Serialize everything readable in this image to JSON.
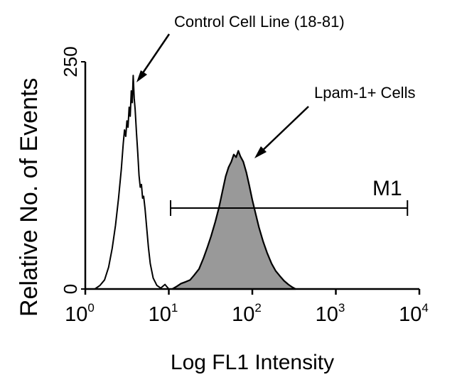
{
  "chart_data": {
    "type": "area",
    "xlabel": "Log FL1 Intensity",
    "ylabel": "Relative No. of Events",
    "x_scale": "log",
    "xlim": [
      1,
      10000
    ],
    "ylim": [
      0,
      250
    ],
    "x_ticks": [
      {
        "base": "10",
        "exp": "0",
        "value": 1
      },
      {
        "base": "10",
        "exp": "1",
        "value": 10
      },
      {
        "base": "10",
        "exp": "2",
        "value": 100
      },
      {
        "base": "10",
        "exp": "3",
        "value": 1000
      },
      {
        "base": "10",
        "exp": "4",
        "value": 10000
      }
    ],
    "y_ticks": [
      {
        "label": "0",
        "value": 0
      },
      {
        "label": "250",
        "value": 250
      }
    ],
    "series": [
      {
        "style": "outline",
        "color": "#000000",
        "points": [
          [
            1.3,
            0
          ],
          [
            1.5,
            4
          ],
          [
            1.7,
            10
          ],
          [
            1.9,
            24
          ],
          [
            2.1,
            45
          ],
          [
            2.3,
            70
          ],
          [
            2.5,
            100
          ],
          [
            2.7,
            132
          ],
          [
            2.85,
            160
          ],
          [
            2.95,
            175
          ],
          [
            3.05,
            168
          ],
          [
            3.15,
            185
          ],
          [
            3.25,
            178
          ],
          [
            3.35,
            200
          ],
          [
            3.45,
            190
          ],
          [
            3.55,
            218
          ],
          [
            3.65,
            205
          ],
          [
            3.75,
            235
          ],
          [
            3.85,
            210
          ],
          [
            3.95,
            198
          ],
          [
            4.1,
            172
          ],
          [
            4.25,
            150
          ],
          [
            4.4,
            125
          ],
          [
            4.55,
            112
          ],
          [
            4.7,
            115
          ],
          [
            4.85,
            100
          ],
          [
            5.0,
            102
          ],
          [
            5.2,
            88
          ],
          [
            5.4,
            70
          ],
          [
            5.7,
            46
          ],
          [
            6.0,
            28
          ],
          [
            6.5,
            12
          ],
          [
            7.2,
            4
          ],
          [
            8.0,
            1
          ],
          [
            9.0,
            5
          ],
          [
            10.0,
            0
          ]
        ]
      },
      {
        "style": "filled",
        "color": "#999999",
        "points": [
          [
            11,
            0
          ],
          [
            12.5,
            3
          ],
          [
            14,
            6
          ],
          [
            16,
            8
          ],
          [
            18,
            10
          ],
          [
            20,
            15
          ],
          [
            23,
            22
          ],
          [
            26,
            34
          ],
          [
            29,
            46
          ],
          [
            32,
            58
          ],
          [
            36,
            74
          ],
          [
            40,
            90
          ],
          [
            44,
            108
          ],
          [
            48,
            124
          ],
          [
            52,
            134
          ],
          [
            56,
            140
          ],
          [
            60,
            148
          ],
          [
            64,
            145
          ],
          [
            68,
            152
          ],
          [
            72,
            146
          ],
          [
            78,
            140
          ],
          [
            85,
            128
          ],
          [
            92,
            114
          ],
          [
            100,
            98
          ],
          [
            110,
            82
          ],
          [
            120,
            68
          ],
          [
            135,
            52
          ],
          [
            150,
            40
          ],
          [
            170,
            28
          ],
          [
            190,
            20
          ],
          [
            215,
            14
          ],
          [
            240,
            9
          ],
          [
            270,
            5
          ],
          [
            300,
            2
          ],
          [
            330,
            0
          ]
        ]
      }
    ],
    "gate": {
      "label": "M1",
      "x_start": 10,
      "x_end": 7200
    },
    "annotations": [
      {
        "text": "Control Cell Line (18-81)"
      },
      {
        "text": "Lpam-1+ Cells"
      }
    ]
  }
}
